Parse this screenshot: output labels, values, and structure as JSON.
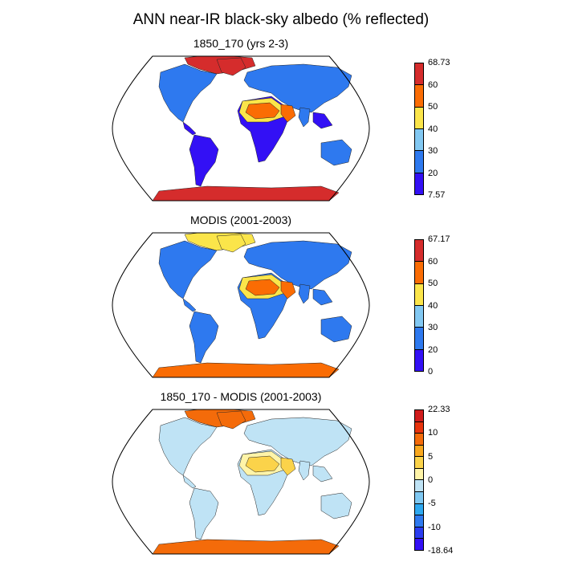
{
  "title": "ANN near-IR black-sky albedo (% reflected)",
  "panels": [
    {
      "id": "model",
      "title": "1850_170 (yrs 2-3)",
      "colors": [
        "#3310f5",
        "#2e79ef",
        "#82c8f2",
        "#fbe54a",
        "#fa6c04",
        "#d52c2c"
      ],
      "ticks": [
        "68.73",
        "60",
        "50",
        "40",
        "30",
        "20",
        "7.57"
      ],
      "land": {
        "north": "#2e79ef",
        "tropics": "#3310f5",
        "desert": "#fa6c04",
        "desert_edge": "#fbe54a",
        "arctic": "#d52c2c",
        "antarctica": "#d52c2c"
      }
    },
    {
      "id": "modis",
      "title": "MODIS (2001-2003)",
      "colors": [
        "#3310f5",
        "#2e79ef",
        "#82c8f2",
        "#fbe54a",
        "#fa6c04",
        "#d52c2c"
      ],
      "ticks": [
        "67.17",
        "60",
        "50",
        "40",
        "30",
        "20",
        "0"
      ],
      "land": {
        "north": "#2e79ef",
        "tropics": "#2e79ef",
        "desert": "#fa6c04",
        "desert_edge": "#fbe54a",
        "arctic": "#fbe54a",
        "antarctica": "#fa6c04"
      }
    },
    {
      "id": "diff",
      "title": "1850_170 - MODIS (2001-2003)",
      "colors": [
        "#3310f5",
        "#2a3cf0",
        "#2e79ef",
        "#2ea8f0",
        "#7fc8f2",
        "#bfe3f5",
        "#fff4a8",
        "#fbd34a",
        "#f9a81e",
        "#f46b0a",
        "#e8330c",
        "#d01c1c"
      ],
      "ticks": [
        "22.33",
        "",
        "10",
        "",
        "5",
        "",
        "0",
        "",
        "-5",
        "",
        "-10",
        "",
        "-18.64"
      ],
      "land": {
        "north": "#bfe3f5",
        "tropics": "#bfe3f5",
        "desert": "#fbd34a",
        "desert_edge": "#fff4a8",
        "arctic": "#f46b0a",
        "antarctica": "#f46b0a"
      }
    }
  ]
}
